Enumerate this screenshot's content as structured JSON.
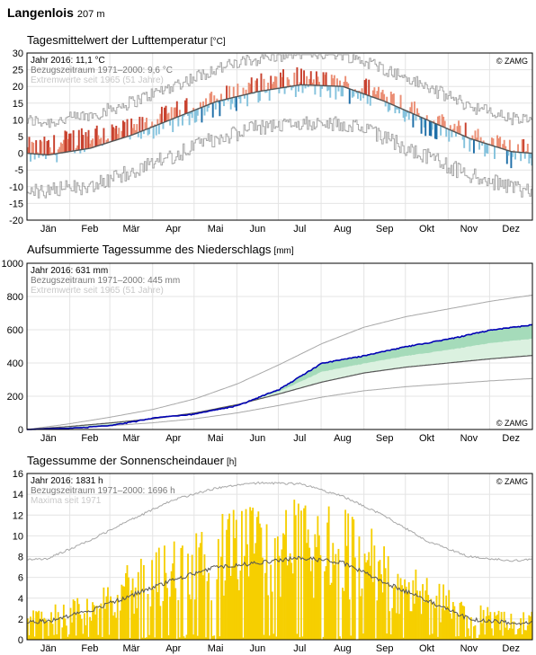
{
  "station": {
    "name": "Langenlois",
    "altitude": "207 m"
  },
  "months": [
    "Jän",
    "Feb",
    "Mär",
    "Apr",
    "Mai",
    "Jun",
    "Jul",
    "Aug",
    "Sep",
    "Okt",
    "Nov",
    "Dez"
  ],
  "copyright": "© ZAMG",
  "colors": {
    "warm_dark": "#c8412e",
    "warm_light": "#eb8f75",
    "cold_dark": "#1f6fa8",
    "cold_light": "#86c3dd",
    "normal_line": "#555555",
    "extreme_line": "#a8a8a8",
    "precip_line": "#0000b4",
    "precip_above": "#a5dbba",
    "precip_below": "#dbf1e0",
    "sun_bar": "#f6cf00",
    "sun_line": "#555555"
  },
  "chart_data": [
    {
      "type": "line",
      "title": "Tagesmittelwert der Lufttemperatur",
      "unit": "[°C]",
      "legend": [
        "Jahr 2016: 11,1 °C",
        "Bezugszeitraum 1971–2000: 9,6 °C",
        "Extremwerte seit 1965 (51 Jahre)"
      ],
      "xlabel": "",
      "ylabel": "",
      "ylim": [
        -20,
        30
      ],
      "yticks": [
        30,
        25,
        20,
        15,
        10,
        5,
        0,
        -5,
        -10,
        -15,
        -20
      ],
      "x": [
        "Jän",
        "Feb",
        "Mär",
        "Apr",
        "Mai",
        "Jun",
        "Jul",
        "Aug",
        "Sep",
        "Okt",
        "Nov",
        "Dez"
      ],
      "series": [
        {
          "name": "Bezugszeitraum 1971–2000",
          "values": [
            -0.5,
            1.5,
            5.5,
            10.5,
            15.5,
            18.5,
            20.5,
            20.0,
            15.5,
            10.0,
            4.5,
            0.5
          ]
        },
        {
          "name": "Jahr 2016",
          "values": [
            0.8,
            5.5,
            6.0,
            11.0,
            15.0,
            19.5,
            21.5,
            19.5,
            17.5,
            9.0,
            4.5,
            0.0
          ]
        }
      ]
    },
    {
      "type": "line",
      "title": "Aufsummierte Tagessumme des Niederschlags",
      "unit": "[mm]",
      "legend": [
        "Jahr 2016: 631 mm",
        "Bezugszeitraum 1971–2000: 445 mm",
        "Extremwerte seit 1965 (51 Jahre)"
      ],
      "xlabel": "",
      "ylabel": "",
      "ylim": [
        0,
        1000
      ],
      "yticks": [
        1000,
        800,
        600,
        400,
        200,
        0
      ],
      "x": [
        "Jän",
        "Feb",
        "Mär",
        "Apr",
        "Mai",
        "Jun",
        "Jul",
        "Aug",
        "Sep",
        "Okt",
        "Nov",
        "Dez"
      ],
      "series": [
        {
          "name": "Bezugszeitraum 1971–2000",
          "values": [
            18,
            40,
            65,
            100,
            150,
            215,
            285,
            340,
            375,
            400,
            425,
            445
          ]
        },
        {
          "name": "Jahr 2016",
          "values": [
            8,
            25,
            70,
            95,
            145,
            245,
            400,
            445,
            500,
            545,
            600,
            631
          ]
        }
      ]
    },
    {
      "type": "bar",
      "title": "Tagessumme der Sonnenscheindauer",
      "unit": "[h]",
      "legend": [
        "Jahr 2016: 1831 h",
        "Bezugszeitraum 1971–2000: 1696 h",
        "Maxima seit 1971"
      ],
      "xlabel": "",
      "ylabel": "",
      "ylim": [
        0,
        16
      ],
      "yticks": [
        16,
        14,
        12,
        10,
        8,
        6,
        4,
        2,
        0
      ],
      "x": [
        "Jän",
        "Feb",
        "Mär",
        "Apr",
        "Mai",
        "Jun",
        "Jul",
        "Aug",
        "Sep",
        "Okt",
        "Nov",
        "Dez"
      ],
      "series": [
        {
          "name": "Bezugszeitraum 1971–2000",
          "values": [
            1.8,
            2.8,
            4.3,
            5.8,
            7.0,
            7.4,
            7.9,
            7.4,
            5.5,
            3.8,
            2.0,
            1.6
          ]
        },
        {
          "name": "Maxima seit 1971",
          "values": [
            7.8,
            9.6,
            11.6,
            13.5,
            14.6,
            15.1,
            15.0,
            13.8,
            11.9,
            9.5,
            8.0,
            7.6
          ]
        }
      ]
    }
  ]
}
